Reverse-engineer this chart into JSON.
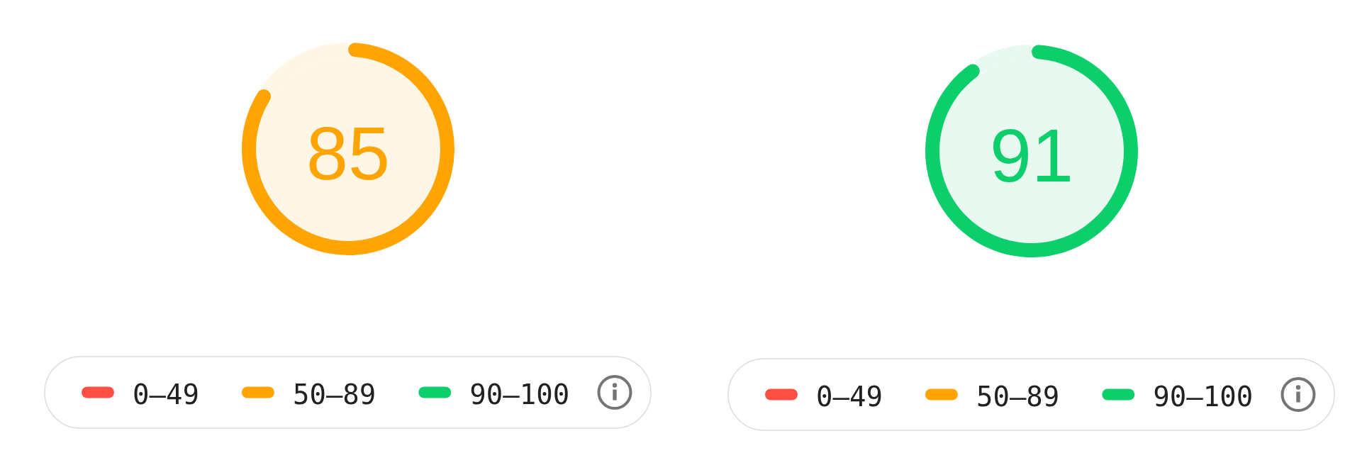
{
  "chart_data": [
    {
      "type": "donut",
      "categories": [
        null,
        null
      ],
      "values": [
        85,
        15
      ],
      "colors": [
        "#ffa400",
        "#fff6e6"
      ],
      "value_labels": [
        "85",
        null
      ],
      "annotations": [
        "0–49",
        "50–89",
        "90–100"
      ]
    },
    {
      "type": "donut",
      "categories": [
        null,
        null
      ],
      "values": [
        91,
        9
      ],
      "colors": [
        "#0cce6b",
        "#e7f9f0"
      ],
      "value_labels": [
        "91",
        null
      ],
      "annotations": [
        "0–49",
        "50–89",
        "90–100"
      ]
    }
  ]
}
